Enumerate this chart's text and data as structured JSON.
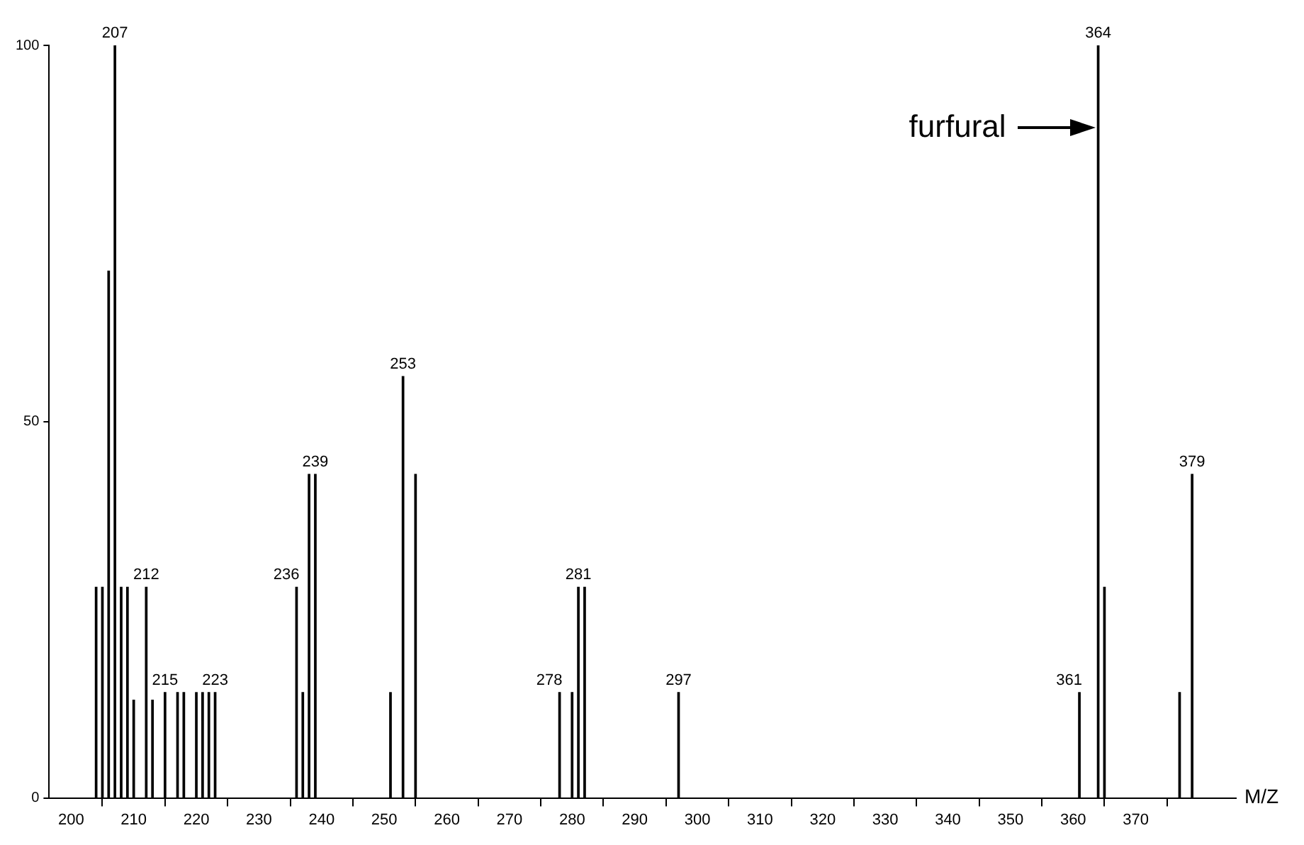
{
  "chart_data": {
    "type": "bar",
    "xlabel": "M/Z",
    "x": [
      204,
      205,
      206,
      207,
      208,
      209,
      210,
      212,
      213,
      215,
      217,
      218,
      220,
      221,
      222,
      223,
      236,
      237,
      238,
      239,
      251,
      253,
      255,
      278,
      280,
      281,
      282,
      297,
      361,
      364,
      365,
      377,
      379
    ],
    "series": [
      {
        "color": "#000000",
        "values": [
          28,
          28,
          70,
          100,
          28,
          28,
          13,
          28,
          13,
          14,
          14,
          14,
          14,
          14,
          14,
          14,
          28,
          14,
          43,
          43,
          14,
          56,
          43,
          14,
          14,
          28,
          28,
          14,
          14,
          100,
          28,
          14,
          43
        ]
      }
    ],
    "annotations": [
      {
        "text": "furfural",
        "x": 364,
        "y": 89
      },
      {
        "text": "207",
        "x": 207,
        "y": 100
      },
      {
        "text": "212",
        "x": 212,
        "y": 28
      },
      {
        "text": "215",
        "x": 215,
        "y": 14
      },
      {
        "text": "223",
        "x": 223,
        "y": 14
      },
      {
        "text": "236",
        "x": 236,
        "y": 28
      },
      {
        "text": "239",
        "x": 239,
        "y": 43
      },
      {
        "text": "253",
        "x": 253,
        "y": 56
      },
      {
        "text": "278",
        "x": 278,
        "y": 14
      },
      {
        "text": "281",
        "x": 281,
        "y": 28
      },
      {
        "text": "297",
        "x": 297,
        "y": 14
      },
      {
        "text": "361",
        "x": 361,
        "y": 14
      },
      {
        "text": "364",
        "x": 364,
        "y": 100
      },
      {
        "text": "379",
        "x": 379,
        "y": 43
      }
    ],
    "xlim": [
      196.5,
      386
    ],
    "xticks": [
      200,
      210,
      220,
      230,
      240,
      250,
      260,
      270,
      280,
      290,
      300,
      310,
      320,
      330,
      340,
      350,
      360,
      370
    ],
    "ylim": [
      0,
      100
    ],
    "yticks": [
      0,
      50,
      100
    ],
    "grid": false,
    "legend": false
  }
}
